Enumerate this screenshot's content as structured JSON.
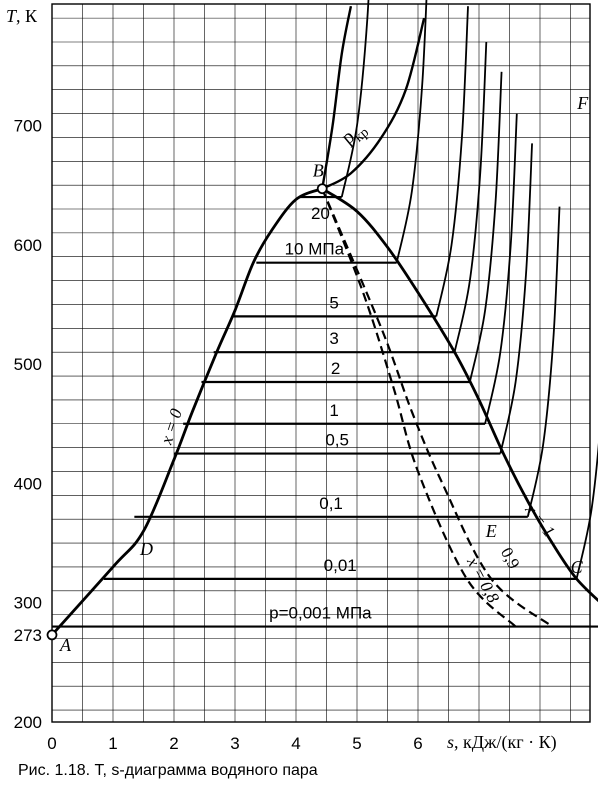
{
  "caption": "Рис. 1.18. T, s-диаграмма водяного пара",
  "chart_data": {
    "type": "line",
    "title": "",
    "xlabel_italic": "s",
    "xlabel_units": ", кДж/(кг · К)",
    "ylabel_italic": "T",
    "ylabel_units": ", К",
    "xlim": [
      0,
      9.1
    ],
    "ylim": [
      200,
      800
    ],
    "x_ticks": [
      "0",
      "1",
      "2",
      "3",
      "4",
      "5",
      "6"
    ],
    "y_ticks": [
      "200",
      "300",
      "400",
      "500",
      "600",
      "700"
    ],
    "y_extra_tick": "273",
    "grid": true,
    "saturation_curve": {
      "name_liquid": "x = 0",
      "name_vapor": "x = 1",
      "liquid": [
        [
          0,
          273
        ],
        [
          1.0,
          330
        ],
        [
          1.5,
          360
        ],
        [
          2.0,
          420
        ],
        [
          2.3,
          460
        ],
        [
          2.7,
          510
        ],
        [
          3.0,
          545
        ],
        [
          3.3,
          585
        ],
        [
          3.6,
          612
        ],
        [
          4.0,
          638
        ],
        [
          4.43,
          647
        ]
      ],
      "vapor": [
        [
          4.43,
          647
        ],
        [
          5.0,
          628
        ],
        [
          5.5,
          598
        ],
        [
          6.0,
          560
        ],
        [
          6.6,
          510
        ],
        [
          7.0,
          470
        ],
        [
          7.4,
          425
        ],
        [
          7.8,
          385
        ],
        [
          8.2,
          350
        ],
        [
          8.6,
          320
        ],
        [
          9.1,
          295
        ]
      ]
    },
    "critical_point": {
      "label": "B",
      "s": 4.43,
      "T": 647
    },
    "triple_point": {
      "label": "A",
      "s": 0,
      "T": 273
    },
    "point_labels": [
      {
        "label": "D",
        "s": 1.55,
        "T": 340
      },
      {
        "label": "E",
        "s": 7.2,
        "T": 355
      },
      {
        "label": "C",
        "s": 8.6,
        "T": 325
      },
      {
        "label": "F",
        "s": 8.7,
        "T": 714
      }
    ],
    "isobars": [
      {
        "label": "p=0,001 МПа",
        "T": 280,
        "s_liq": 0.0,
        "s_vap": 9.1
      },
      {
        "label": "0,01",
        "T": 320,
        "s_liq": 0.85,
        "s_vap": 8.6
      },
      {
        "label": "0,1",
        "T": 372,
        "s_liq": 1.35,
        "s_vap": 7.8
      },
      {
        "label": "0,5",
        "T": 425,
        "s_liq": 2.0,
        "s_vap": 7.35
      },
      {
        "label": "1",
        "T": 450,
        "s_liq": 2.15,
        "s_vap": 7.1
      },
      {
        "label": "2",
        "T": 485,
        "s_liq": 2.45,
        "s_vap": 6.85
      },
      {
        "label": "3",
        "T": 510,
        "s_liq": 2.65,
        "s_vap": 6.6
      },
      {
        "label": "5",
        "T": 540,
        "s_liq": 2.95,
        "s_vap": 6.3
      },
      {
        "label": "10 МПа",
        "T": 585,
        "s_liq": 3.35,
        "s_vap": 5.65
      },
      {
        "label": "20",
        "T": 640,
        "s_liq": 4.05,
        "s_vap": 4.75
      }
    ],
    "critical_isobar_label": "p",
    "critical_isobar_subscript": "кр",
    "dryness_lines": [
      {
        "label": "0,9",
        "points": [
          [
            4.43,
            647
          ],
          [
            5.4,
            530
          ],
          [
            5.9,
            460
          ],
          [
            6.4,
            400
          ],
          [
            7.2,
            320
          ],
          [
            8.2,
            280
          ]
        ]
      },
      {
        "label": "x = 0,8",
        "points": [
          [
            4.43,
            647
          ],
          [
            5.1,
            560
          ],
          [
            5.6,
            480
          ],
          [
            6.0,
            410
          ],
          [
            6.8,
            320
          ],
          [
            7.6,
            280
          ]
        ]
      }
    ]
  }
}
